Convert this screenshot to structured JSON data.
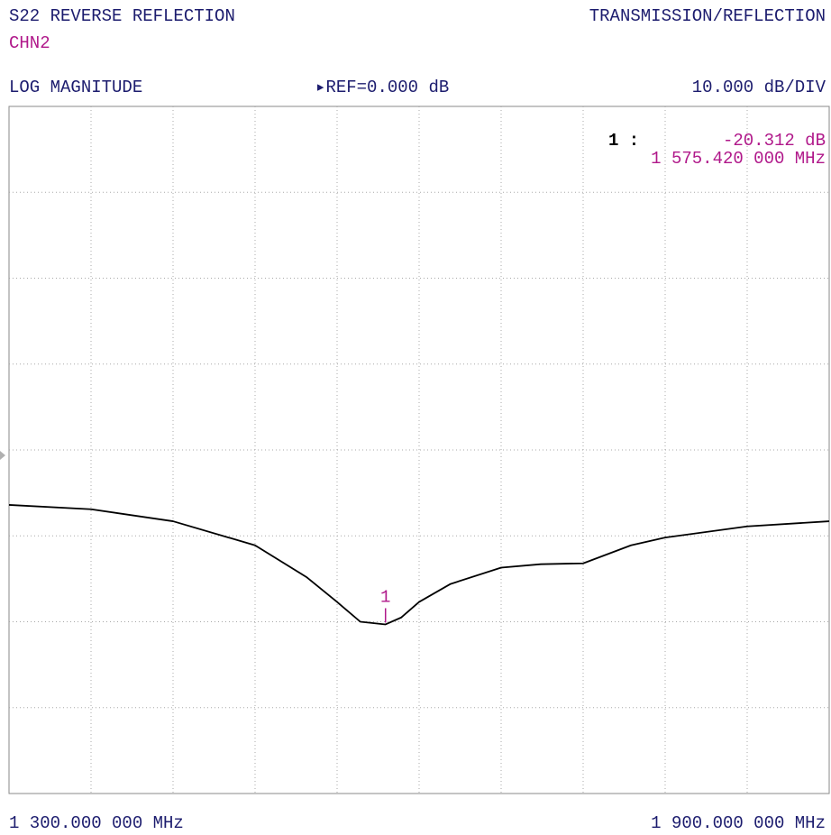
{
  "chart_data": {
    "type": "line",
    "title": "S22 REVERSE REFLECTION",
    "mode": "TRANSMISSION/REFLECTION",
    "channel": "CHN2",
    "format": "LOG MAGNITUDE",
    "reference": "▸REF=0.000 dB",
    "scale": "10.000 dB/DIV",
    "x": [
      1300,
      1360,
      1420,
      1480,
      1517.6,
      1540,
      1557,
      1575.42,
      1587,
      1600,
      1623,
      1660,
      1689,
      1720,
      1755,
      1780,
      1840,
      1900
    ],
    "series": [
      {
        "color": "#000000",
        "values": [
          -6.4,
          -6.9,
          -8.3,
          -11.1,
          -14.8,
          -17.7,
          -20.0,
          -20.312,
          -19.5,
          -17.7,
          -15.6,
          -13.7,
          -13.3,
          -13.2,
          -11.1,
          -10.2,
          -8.9,
          -8.3
        ]
      }
    ],
    "xlim": [
      1300,
      1900
    ],
    "xticks": [
      {
        "value": 1300,
        "label": "1 300.000 000 MHz"
      },
      1360,
      1420,
      1480,
      1540,
      1600,
      1660,
      1720,
      1780,
      1840,
      {
        "value": 1900,
        "label": "1 900.000 000 MHz"
      }
    ],
    "ylim": [
      -40,
      40
    ],
    "yticks": [
      -40,
      -30,
      -20,
      -10,
      0,
      10,
      20,
      30,
      40
    ],
    "grid": true,
    "markers": [
      {
        "label": "1",
        "readout": "1 :",
        "x": 1575.42,
        "y": -20.312,
        "value_label": "-20.312 dB",
        "x_label": "1 575.420 000 MHz",
        "color": "#b0188a"
      }
    ]
  }
}
